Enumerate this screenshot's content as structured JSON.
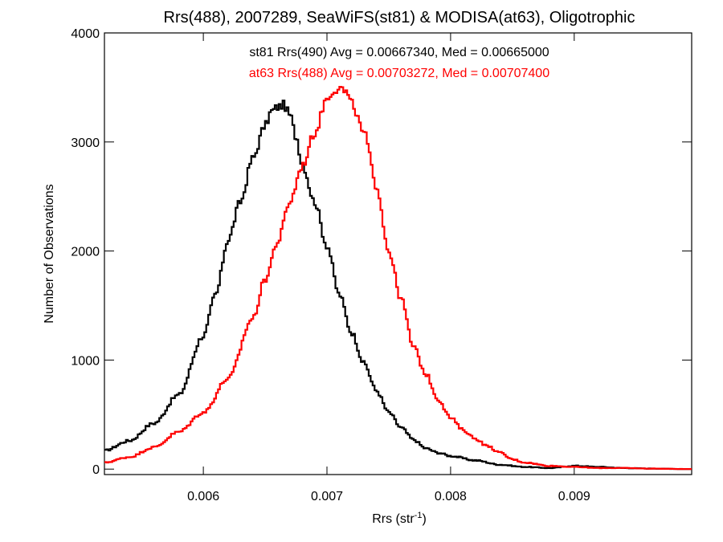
{
  "chart_data": {
    "type": "line",
    "title": "Rrs(488), 2007289, SeaWiFS(st81) & MODISA(at63), Oligotrophic",
    "xlabel_main": "Rrs (str",
    "xlabel_sup": "-1",
    "xlabel_close": ")",
    "ylabel": "Number of Observations",
    "xlim": [
      0.0052,
      0.00995
    ],
    "ylim": [
      -50,
      4000
    ],
    "x_ticks": [
      0.006,
      0.007,
      0.008,
      0.009
    ],
    "x_tick_labels": [
      "0.006",
      "0.007",
      "0.008",
      "0.009"
    ],
    "y_ticks": [
      0,
      1000,
      2000,
      3000,
      4000
    ],
    "y_tick_labels": [
      "0",
      "1000",
      "2000",
      "3000",
      "4000"
    ],
    "legend_position": "top-center",
    "series": [
      {
        "name": "st81 Rrs(490) Avg = 0.00667340, Med = 0.00665000",
        "color": "#000000",
        "x": [
          0.0052,
          0.0054,
          0.0056,
          0.0058,
          0.006,
          0.0061,
          0.0062,
          0.0063,
          0.0064,
          0.0065,
          0.00655,
          0.0066,
          0.00665,
          0.0067,
          0.00675,
          0.0068,
          0.0069,
          0.007,
          0.0071,
          0.0072,
          0.0073,
          0.0074,
          0.0075,
          0.0076,
          0.0077,
          0.0078,
          0.0079,
          0.008,
          0.0082,
          0.0084,
          0.0086,
          0.0088,
          0.009,
          0.0092,
          0.0094,
          0.0096,
          0.00995
        ],
        "values": [
          170,
          260,
          420,
          680,
          1220,
          1600,
          2100,
          2450,
          2850,
          3150,
          3280,
          3320,
          3340,
          3250,
          3050,
          2800,
          2450,
          2050,
          1600,
          1250,
          970,
          720,
          520,
          380,
          270,
          190,
          150,
          120,
          80,
          40,
          20,
          10,
          30,
          20,
          10,
          5,
          0
        ]
      },
      {
        "name": "at63 Rrs(488) Avg = 0.00703272, Med = 0.00707400",
        "color": "#ff0000",
        "x": [
          0.0052,
          0.0054,
          0.0056,
          0.0058,
          0.006,
          0.0062,
          0.0064,
          0.0065,
          0.0066,
          0.0067,
          0.0068,
          0.0069,
          0.007,
          0.00705,
          0.0071,
          0.00715,
          0.0072,
          0.0073,
          0.0074,
          0.0075,
          0.0076,
          0.0077,
          0.0078,
          0.0079,
          0.008,
          0.0081,
          0.0082,
          0.0083,
          0.0084,
          0.0085,
          0.0086,
          0.0088,
          0.009,
          0.0092,
          0.0094,
          0.0096,
          0.00995
        ],
        "values": [
          60,
          110,
          200,
          340,
          520,
          830,
          1380,
          1740,
          2080,
          2450,
          2780,
          3080,
          3400,
          3470,
          3500,
          3460,
          3350,
          3080,
          2600,
          2000,
          1560,
          1120,
          870,
          640,
          470,
          360,
          280,
          210,
          150,
          90,
          60,
          30,
          20,
          10,
          10,
          5,
          0
        ]
      }
    ]
  }
}
